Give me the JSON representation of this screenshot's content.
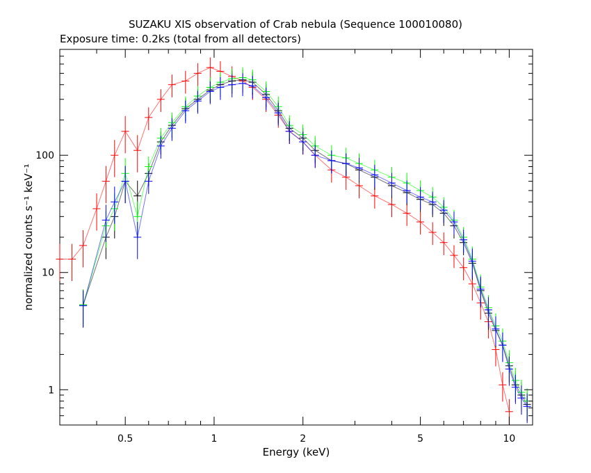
{
  "chart_data": {
    "type": "scatter",
    "title": "SUZAKU XIS observation of Crab nebula (Sequence 100010080)",
    "subtitle": "Exposure time: 0.2ks (total from all detectors)",
    "xlabel": "Energy (keV)",
    "ylabel": "normalized counts s⁻¹ keV⁻¹",
    "x_scale": "log",
    "y_scale": "log",
    "xlim": [
      0.3,
      12.0
    ],
    "ylim": [
      0.5,
      800
    ],
    "x_ticks": [
      0.5,
      1,
      2,
      5,
      10
    ],
    "x_tick_labels": [
      "0.5",
      "1",
      "2",
      "5",
      "10"
    ],
    "y_ticks": [
      1,
      10,
      100
    ],
    "y_tick_labels": [
      "1",
      "10",
      "100"
    ],
    "grid": false,
    "legend": "none",
    "series": [
      {
        "color": "#ff0000",
        "x": [
          0.3,
          0.33,
          0.36,
          0.4,
          0.43,
          0.46,
          0.5,
          0.55,
          0.6,
          0.66,
          0.72,
          0.8,
          0.88,
          0.97,
          1.05,
          1.15,
          1.25,
          1.35,
          1.5,
          1.65,
          1.8,
          2.0,
          2.2,
          2.5,
          2.8,
          3.1,
          3.5,
          4.0,
          4.5,
          5.0,
          5.5,
          6.0,
          6.5,
          7.0,
          7.5,
          8.0,
          8.5,
          9.0,
          9.5,
          10.0
        ],
        "y": [
          13,
          13,
          17,
          35,
          60,
          100,
          160,
          110,
          210,
          300,
          400,
          430,
          500,
          560,
          520,
          470,
          430,
          380,
          300,
          220,
          160,
          130,
          100,
          75,
          65,
          55,
          45,
          38,
          32,
          27,
          22,
          18,
          14,
          11,
          8,
          5.5,
          3.8,
          2.2,
          1.1,
          0.65
        ]
      },
      {
        "color": "#000000",
        "x": [
          0.36,
          0.43,
          0.46,
          0.5,
          0.55,
          0.6,
          0.66,
          0.72,
          0.8,
          0.88,
          0.97,
          1.05,
          1.15,
          1.25,
          1.35,
          1.5,
          1.65,
          1.8,
          2.0,
          2.2,
          2.5,
          2.8,
          3.1,
          3.5,
          4.0,
          4.5,
          5.0,
          5.5,
          6.0,
          6.5,
          7.0,
          7.5,
          8.0,
          8.5,
          9.0,
          9.5,
          10.0,
          10.5,
          11.0,
          11.5
        ],
        "y": [
          5.3,
          20,
          30,
          60,
          45,
          70,
          130,
          180,
          250,
          300,
          360,
          400,
          430,
          440,
          420,
          330,
          240,
          170,
          140,
          110,
          90,
          85,
          75,
          65,
          55,
          48,
          42,
          38,
          32,
          25,
          18,
          12,
          7.0,
          4.5,
          3.2,
          2.4,
          1.6,
          1.1,
          0.9,
          0.75
        ]
      },
      {
        "color": "#00ff00",
        "x": [
          0.36,
          0.43,
          0.46,
          0.5,
          0.55,
          0.6,
          0.66,
          0.72,
          0.8,
          0.88,
          0.97,
          1.05,
          1.15,
          1.25,
          1.35,
          1.5,
          1.65,
          1.8,
          2.0,
          2.2,
          2.5,
          2.8,
          3.1,
          3.5,
          4.0,
          4.5,
          5.0,
          5.5,
          6.0,
          6.5,
          7.0,
          7.5,
          8.0,
          8.5,
          9.0,
          9.5,
          10.0,
          10.5,
          11.0,
          11.5
        ],
        "y": [
          5.3,
          25,
          35,
          70,
          30,
          80,
          140,
          190,
          260,
          320,
          380,
          420,
          450,
          460,
          440,
          350,
          260,
          180,
          150,
          120,
          100,
          95,
          85,
          75,
          65,
          58,
          50,
          44,
          36,
          28,
          20,
          13,
          7.5,
          5.0,
          3.5,
          2.6,
          1.7,
          1.2,
          0.95,
          0.8
        ]
      },
      {
        "color": "#0000ff",
        "x": [
          0.36,
          0.43,
          0.46,
          0.5,
          0.55,
          0.6,
          0.66,
          0.72,
          0.8,
          0.88,
          0.97,
          1.05,
          1.15,
          1.25,
          1.35,
          1.5,
          1.65,
          1.8,
          2.0,
          2.2,
          2.5,
          2.8,
          3.1,
          3.5,
          4.0,
          4.5,
          5.0,
          5.5,
          6.0,
          6.5,
          7.0,
          7.5,
          8.0,
          8.5,
          9.0,
          9.5,
          10.0,
          10.5,
          11.0,
          11.5
        ],
        "y": [
          5.2,
          28,
          40,
          60,
          20,
          60,
          120,
          170,
          240,
          290,
          350,
          380,
          400,
          410,
          390,
          310,
          230,
          160,
          130,
          100,
          90,
          85,
          78,
          68,
          58,
          50,
          44,
          40,
          34,
          27,
          19,
          12.5,
          7.2,
          4.8,
          3.3,
          2.4,
          1.5,
          1.05,
          0.85,
          0.72
        ]
      }
    ]
  }
}
